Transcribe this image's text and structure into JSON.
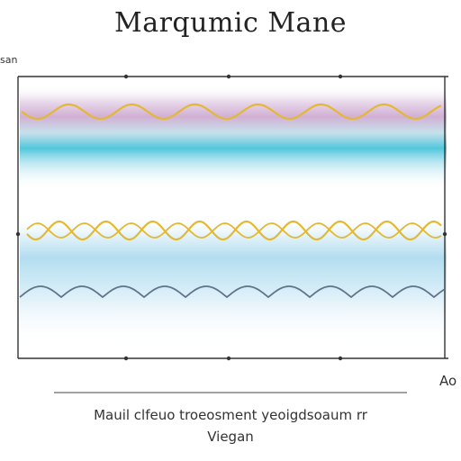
{
  "title": "Marqumic Mane",
  "corner_top_left": "san",
  "corner_bottom_right": "Ao",
  "caption_line1": "Mauil clfeuo troeosment yeoigdsoaum rr",
  "caption_line2": "Viegan",
  "colors": {
    "gold": "#e3b832",
    "slate": "#5e7488",
    "magenta_band": "#c9a2cc",
    "cyan_band": "#3ec0d8",
    "light_blue_band": "#a9d9ee",
    "frame": "#333333"
  }
}
